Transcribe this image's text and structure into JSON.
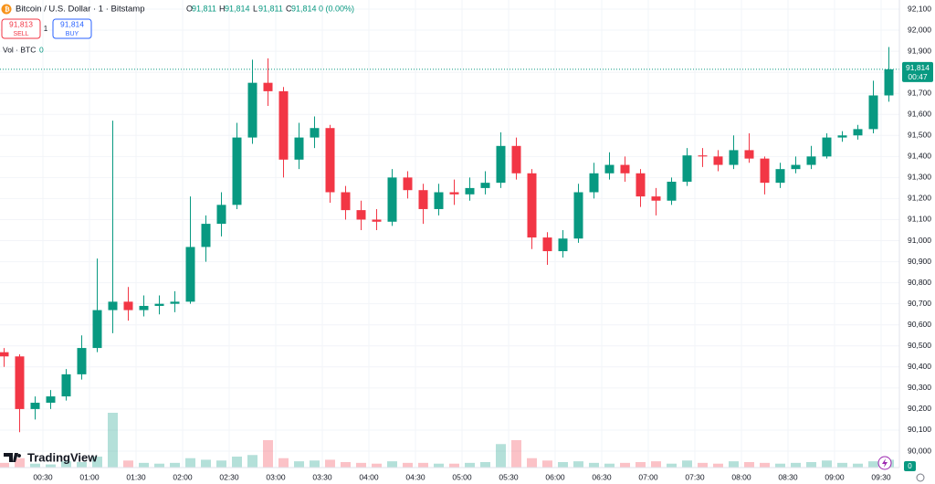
{
  "header": {
    "title": "Bitcoin / U.S. Dollar · 1 · Bitstamp",
    "o_label": "O",
    "o_value": "91,811",
    "h_label": "H",
    "h_value": "91,814",
    "l_label": "L",
    "l_value": "91,811",
    "c_label": "C",
    "c_value": "91,814",
    "change": "0 (0.00%)",
    "sell_price": "91,813",
    "sell_label": "SELL",
    "spread": "1",
    "buy_price": "91,814",
    "buy_label": "BUY",
    "volume_label": "Vol · BTC",
    "volume_value": "0",
    "logo": "TradingView",
    "corner_value": "0"
  },
  "chart_data": {
    "type": "candlestick",
    "up_color": "#089981",
    "down_color": "#f23645",
    "x": [
      "00:00",
      "00:10",
      "00:20",
      "00:30",
      "00:40",
      "00:50",
      "01:00",
      "01:10",
      "01:20",
      "01:30",
      "01:40",
      "01:50",
      "02:00",
      "02:10",
      "02:20",
      "02:30",
      "02:40",
      "02:50",
      "03:00",
      "03:10",
      "03:20",
      "03:30",
      "03:40",
      "03:50",
      "04:00",
      "04:10",
      "04:20",
      "04:30",
      "04:40",
      "04:50",
      "05:00",
      "05:10",
      "05:20",
      "05:30",
      "05:40",
      "05:50",
      "06:00",
      "06:10",
      "06:20",
      "06:30",
      "06:40",
      "06:50",
      "07:00",
      "07:10",
      "07:20",
      "07:30",
      "07:40",
      "07:50",
      "08:00",
      "08:10",
      "08:20",
      "08:30",
      "08:40",
      "08:50",
      "09:00",
      "09:10",
      "09:20",
      "09:30"
    ],
    "open": [
      90470,
      90450,
      90200,
      90230,
      90260,
      90365,
      90490,
      90670,
      90710,
      90670,
      90690,
      90700,
      90710,
      90970,
      91080,
      91170,
      91490,
      91750,
      91710,
      91385,
      91490,
      91535,
      91230,
      91145,
      91100,
      91090,
      91300,
      91240,
      91150,
      91230,
      91220,
      91250,
      91275,
      91450,
      91320,
      91015,
      90950,
      91010,
      91230,
      91320,
      91360,
      91320,
      91210,
      91190,
      91280,
      91405,
      91400,
      91360,
      91430,
      91390,
      91275,
      91340,
      91360,
      91400,
      91490,
      91500,
      91530,
      91690
    ],
    "high": [
      90490,
      90460,
      90260,
      90290,
      90390,
      90550,
      90915,
      91570,
      90780,
      90740,
      90740,
      90760,
      91210,
      91120,
      91230,
      91560,
      91860,
      91866,
      91730,
      91560,
      91590,
      91550,
      91260,
      91190,
      91150,
      91340,
      91330,
      91270,
      91270,
      91290,
      91300,
      91330,
      91515,
      91490,
      91340,
      91040,
      91050,
      91270,
      91370,
      91420,
      91400,
      91340,
      91250,
      91300,
      91440,
      91440,
      91430,
      91500,
      91510,
      91400,
      91370,
      91400,
      91450,
      91510,
      91520,
      91550,
      91760,
      91920
    ],
    "low": [
      90400,
      90090,
      90150,
      90200,
      90240,
      90340,
      90470,
      90560,
      90620,
      90640,
      90650,
      90660,
      90700,
      90900,
      91020,
      91150,
      91460,
      91640,
      91300,
      91340,
      91440,
      91180,
      91100,
      91050,
      91050,
      91070,
      91200,
      91080,
      91120,
      91170,
      91190,
      91220,
      91250,
      91290,
      90960,
      90885,
      90920,
      90990,
      91200,
      91290,
      91280,
      91160,
      91120,
      91170,
      91260,
      91350,
      91330,
      91340,
      91370,
      91220,
      91250,
      91320,
      91340,
      91390,
      91470,
      91480,
      91510,
      91660
    ],
    "close": [
      90450,
      90200,
      90230,
      90260,
      90365,
      90490,
      90670,
      90710,
      90670,
      90690,
      90700,
      90710,
      90970,
      91080,
      91170,
      91490,
      91750,
      91710,
      91385,
      91490,
      91535,
      91230,
      91145,
      91100,
      91090,
      91300,
      91240,
      91150,
      91230,
      91220,
      91250,
      91275,
      91450,
      91320,
      91015,
      90950,
      91010,
      91230,
      91320,
      91360,
      91320,
      91210,
      91190,
      91280,
      91405,
      91400,
      91360,
      91430,
      91390,
      91275,
      91340,
      91360,
      91400,
      91490,
      91500,
      91530,
      91690,
      91814
    ],
    "volume": [
      6,
      12,
      5,
      4,
      8,
      7,
      14,
      70,
      9,
      6,
      5,
      6,
      12,
      10,
      9,
      14,
      16,
      35,
      12,
      8,
      9,
      10,
      7,
      6,
      5,
      8,
      6,
      6,
      5,
      5,
      6,
      7,
      30,
      35,
      12,
      9,
      7,
      8,
      6,
      5,
      6,
      7,
      8,
      5,
      9,
      6,
      5,
      8,
      7,
      6,
      5,
      6,
      7,
      9,
      6,
      5,
      8,
      10
    ],
    "last_price": 91814,
    "last_price_label": "91,814",
    "countdown": "00:47",
    "ylim": [
      90000,
      92100
    ],
    "yticks": [
      {
        "value": 90000,
        "label": "90,000"
      },
      {
        "value": 90100,
        "label": "90,100"
      },
      {
        "value": 90200,
        "label": "90,200"
      },
      {
        "value": 90300,
        "label": "90,300"
      },
      {
        "value": 90400,
        "label": "90,400"
      },
      {
        "value": 90500,
        "label": "90,500"
      },
      {
        "value": 90600,
        "label": "90,600"
      },
      {
        "value": 90700,
        "label": "90,700"
      },
      {
        "value": 90800,
        "label": "90,800"
      },
      {
        "value": 90900,
        "label": "90,900"
      },
      {
        "value": 91000,
        "label": "91,000"
      },
      {
        "value": 91100,
        "label": "91,100"
      },
      {
        "value": 91200,
        "label": "91,200"
      },
      {
        "value": 91300,
        "label": "91,300"
      },
      {
        "value": 91400,
        "label": "91,400"
      },
      {
        "value": 91500,
        "label": "91,500"
      },
      {
        "value": 91600,
        "label": "91,600"
      },
      {
        "value": 91700,
        "label": "91,700"
      },
      {
        "value": 91800,
        "label": "91,800"
      },
      {
        "value": 91900,
        "label": "91,900"
      },
      {
        "value": 92000,
        "label": "92,000"
      },
      {
        "value": 92100,
        "label": "92,100"
      }
    ],
    "xticks": [
      "00:30",
      "01:00",
      "01:30",
      "02:00",
      "02:30",
      "03:00",
      "03:30",
      "04:00",
      "04:30",
      "05:00",
      "05:30",
      "06:00",
      "06:30",
      "07:00",
      "07:30",
      "08:00",
      "08:30",
      "09:00",
      "09:30"
    ],
    "grid": true
  }
}
